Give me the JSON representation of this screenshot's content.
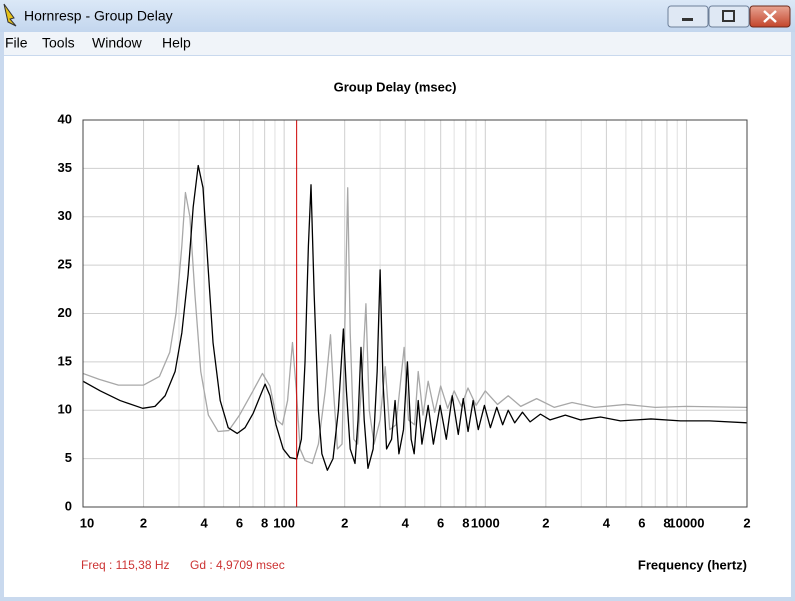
{
  "window": {
    "title": "Hornresp - Group Delay",
    "menu": [
      "File",
      "Tools",
      "Window",
      "Help"
    ]
  },
  "chart_data": {
    "type": "line",
    "title": "Group Delay (msec)",
    "x_label": "Frequency (hertz)",
    "log_x": true,
    "grid": true,
    "xlim": [
      10,
      20000
    ],
    "ylim": [
      0,
      40
    ],
    "yticks": [
      0,
      5,
      10,
      15,
      20,
      25,
      30,
      35,
      40
    ],
    "xticks": [
      10,
      {
        "value": 20,
        "label": "2"
      },
      {
        "value": 40,
        "label": "4"
      },
      {
        "value": 60,
        "label": "6"
      },
      {
        "value": 80,
        "label": "8"
      },
      100,
      {
        "value": 200,
        "label": "2"
      },
      {
        "value": 400,
        "label": "4"
      },
      {
        "value": 600,
        "label": "6"
      },
      {
        "value": 800,
        "label": "8"
      },
      1000,
      {
        "value": 2000,
        "label": "2"
      },
      {
        "value": 4000,
        "label": "4"
      },
      {
        "value": 6000,
        "label": "6"
      },
      {
        "value": 8000,
        "label": "8"
      },
      10000,
      {
        "value": 20000,
        "label": "2"
      }
    ],
    "xminor": [
      30,
      50,
      70,
      90,
      300,
      500,
      700,
      900,
      3000,
      5000,
      7000,
      9000
    ],
    "cursor": {
      "x": 115.38,
      "color": "#cc0000"
    },
    "annotations": [
      "Freq : 115,38 Hz",
      "Gd : 4,9709 msec"
    ],
    "series": [
      {
        "color": "#a8a8a8",
        "x": [
          10,
          12,
          15,
          20,
          24,
          27,
          29,
          31,
          32.3,
          34,
          36,
          38.5,
          42,
          47,
          53,
          60,
          70,
          78,
          85,
          92,
          98,
          104,
          110,
          115,
          120,
          127,
          138,
          148,
          160,
          170,
          176,
          184,
          194,
          201,
          207,
          213,
          222,
          232,
          245,
          255,
          265,
          280,
          300,
          318,
          335,
          360,
          395,
          415,
          445,
          464,
          490,
          520,
          560,
          600,
          650,
          700,
          760,
          820,
          900,
          1000,
          1150,
          1300,
          1500,
          1800,
          2200,
          2700,
          3500,
          5000,
          7000,
          10000,
          20000
        ],
        "values": [
          13.8,
          13.2,
          12.6,
          12.6,
          13.5,
          16,
          20,
          27,
          32.5,
          30,
          22,
          14,
          9.5,
          7.8,
          7.9,
          9.5,
          12,
          13.8,
          12.5,
          9,
          8.5,
          11,
          17,
          12,
          6,
          4.8,
          4.5,
          6.5,
          12,
          17.8,
          12,
          6,
          6.5,
          20,
          33,
          18,
          7,
          6.5,
          14,
          21,
          10,
          6.5,
          9,
          14.5,
          8,
          8.5,
          16.5,
          9,
          8.5,
          14,
          9.5,
          13,
          9.8,
          12.5,
          10.2,
          12,
          10.4,
          12.3,
          10.5,
          12,
          10.6,
          11.5,
          10.4,
          11.2,
          10.3,
          10.8,
          10.3,
          10.6,
          10.3,
          10.4,
          10.3
        ]
      },
      {
        "color": "#000000",
        "x": [
          10,
          12.2,
          15.3,
          19.8,
          22.8,
          25.6,
          28.7,
          31,
          33.3,
          35.3,
          37.4,
          39.5,
          41.8,
          44.3,
          48.1,
          52.7,
          58.4,
          63.9,
          70.2,
          76.1,
          80.4,
          85.1,
          91.1,
          98.9,
          107,
          115.4,
          121.8,
          127,
          132,
          136,
          141,
          148,
          154,
          164,
          175,
          186,
          197,
          204,
          213,
          225,
          233,
          241,
          250,
          261,
          277,
          290,
          300,
          310,
          323,
          342,
          356,
          372,
          392,
          410,
          428,
          443,
          464,
          484,
          520,
          552,
          596,
          640,
          685,
          734,
          777,
          821,
          870,
          923,
          990,
          1060,
          1140,
          1220,
          1300,
          1400,
          1530,
          1670,
          1880,
          2100,
          2500,
          2970,
          3740,
          4700,
          6660,
          9330,
          13000,
          20000
        ],
        "values": [
          13,
          12,
          11,
          10.2,
          10.4,
          11.5,
          14,
          18,
          24,
          31,
          35.3,
          33,
          25,
          17,
          11,
          8.2,
          7.6,
          8.2,
          9.7,
          11.5,
          12.7,
          11.5,
          8.5,
          6,
          5.1,
          4.97,
          7,
          15,
          27,
          33.3,
          22,
          10,
          5.5,
          3.8,
          5,
          10,
          18.4,
          12,
          6,
          4.5,
          9,
          16.5,
          9,
          4,
          6,
          14,
          24.5,
          13,
          6,
          7,
          11,
          5.5,
          8,
          15,
          7,
          5.5,
          11,
          6.5,
          10.5,
          6.5,
          10.5,
          7,
          11.5,
          7.5,
          11.2,
          7.8,
          11,
          8,
          10.5,
          8.2,
          10.3,
          8.5,
          10,
          8.7,
          9.8,
          8.8,
          9.6,
          9,
          9.5,
          9,
          9.3,
          8.9,
          9.1,
          8.9,
          8.9,
          8.7
        ]
      }
    ]
  }
}
